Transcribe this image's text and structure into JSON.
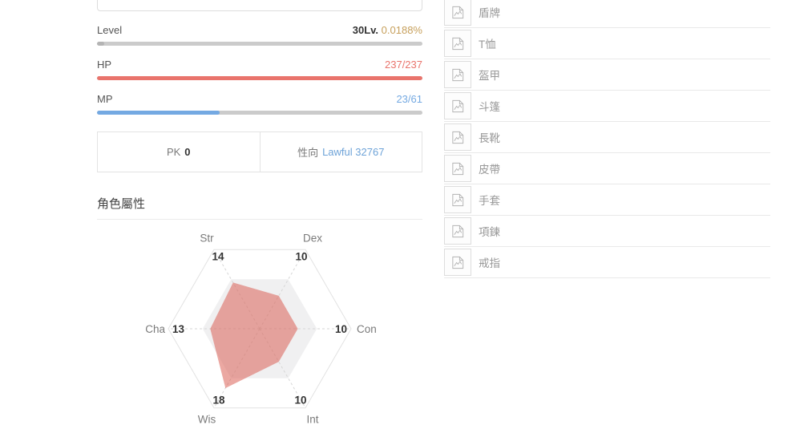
{
  "colors": {
    "hp": "#e9746c",
    "mp": "#74a9e2",
    "level_fill": "#b4b4b4",
    "track": "#cbcbcb",
    "percent": "#c7a05c",
    "link": "#6ea3d8"
  },
  "left_panel": {
    "input_value": "",
    "bars": {
      "level": {
        "label": "Level",
        "value": "30Lv.",
        "percent_text": "0.0188%",
        "fraction": 0.000188,
        "color": "#b4b4b4"
      },
      "hp": {
        "label": "HP",
        "value": "237/237",
        "fraction": 1.0,
        "color": "#e9746c"
      },
      "mp": {
        "label": "MP",
        "value": "23/61",
        "fraction": 0.377,
        "color": "#74a9e2"
      }
    },
    "pk_box": {
      "pk_label": "PK",
      "pk_value": "0",
      "align_label": "性向",
      "align_value": "Lawful 32767"
    },
    "section_title": "角色屬性"
  },
  "chart_data": {
    "type": "radar",
    "title": "角色屬性",
    "categories": [
      "Str",
      "Dex",
      "Con",
      "Int",
      "Wis",
      "Cha"
    ],
    "values": [
      14,
      10,
      10,
      10,
      18,
      13
    ],
    "scale_max": 24,
    "background_polygon_value": 15,
    "first_axis_angle_deg": 120,
    "legend": false,
    "grid": "hexagon-outline-with-dashed-spokes",
    "colors": {
      "data_fill": "rgba(219,97,85,0.55)",
      "background_fill": "#f0f0f1",
      "grid": "#e2e2e2",
      "spokes": "#d6d6d6",
      "axis_name": "#7a7a7a",
      "axis_value": "#333333"
    }
  },
  "equipment": {
    "icon": "broken-image-icon",
    "items": [
      {
        "label": "盾牌"
      },
      {
        "label": "T恤"
      },
      {
        "label": "盔甲"
      },
      {
        "label": "斗篷"
      },
      {
        "label": "長靴"
      },
      {
        "label": "皮帶"
      },
      {
        "label": "手套"
      },
      {
        "label": "項鍊"
      },
      {
        "label": "戒指"
      }
    ]
  }
}
